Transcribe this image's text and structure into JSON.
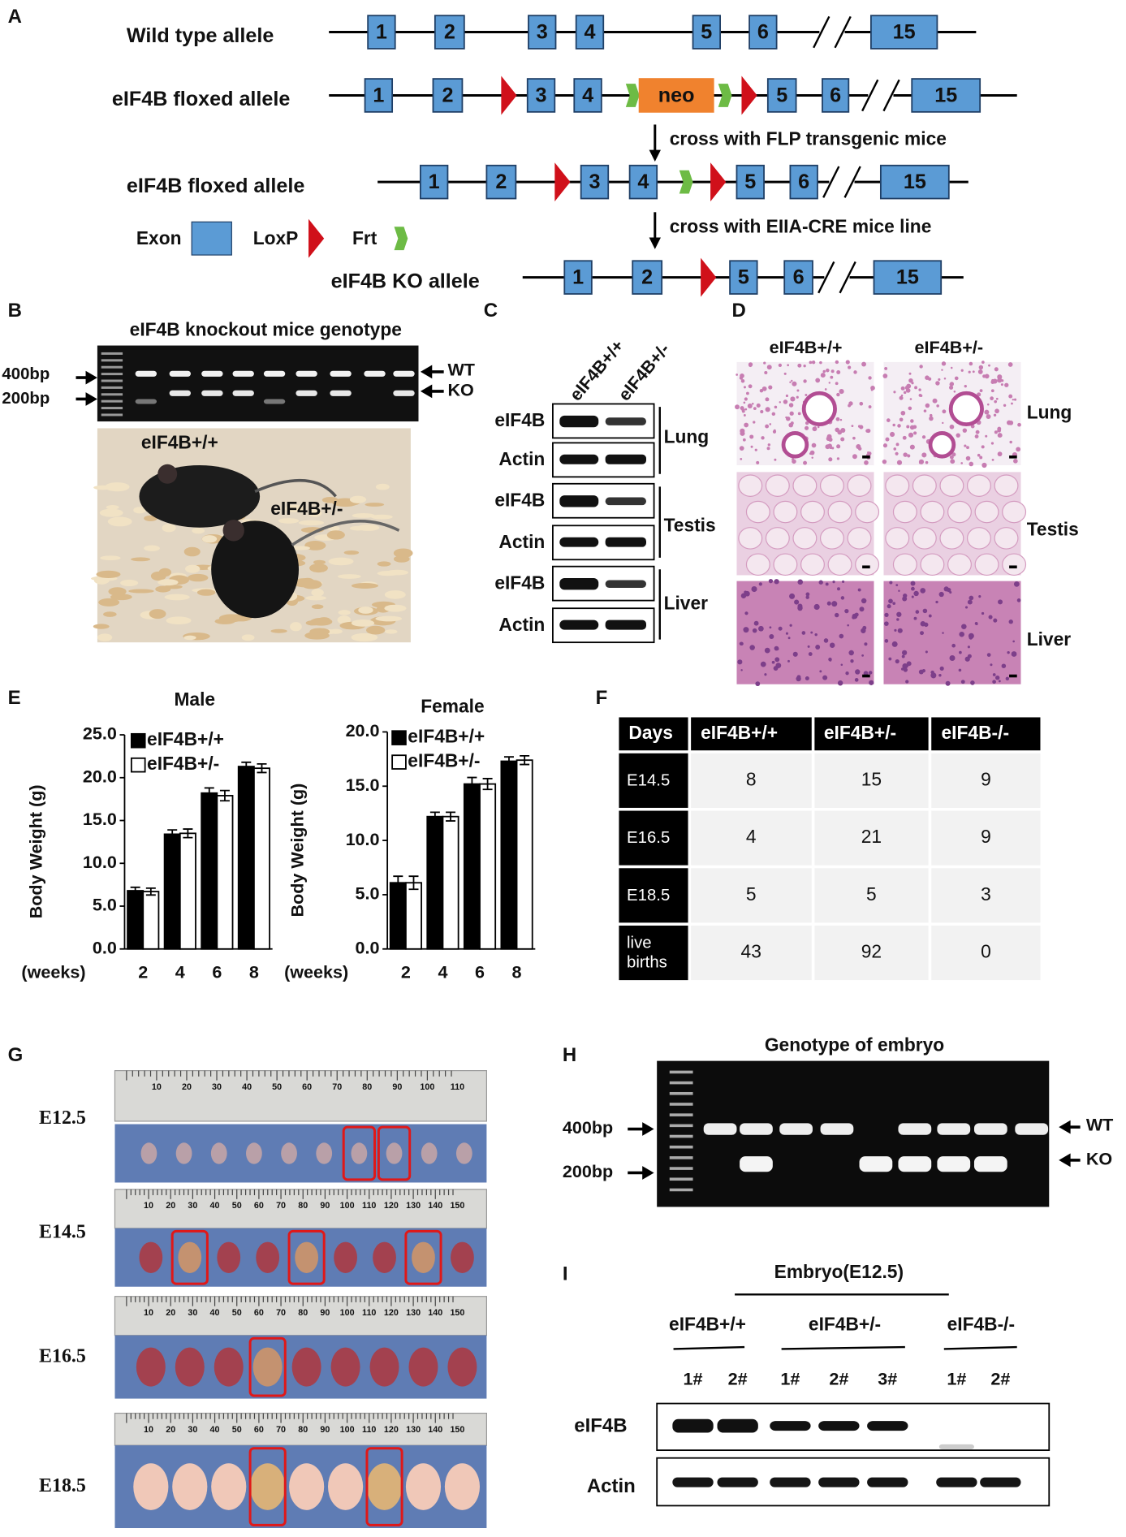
{
  "panel_labels": [
    "A",
    "B",
    "C",
    "D",
    "E",
    "F",
    "G",
    "H",
    "I"
  ],
  "panel_a": {
    "rows": [
      {
        "label": "Wild type allele",
        "exons": [
          "1",
          "2",
          "3",
          "4",
          "5",
          "6",
          "15"
        ]
      },
      {
        "label": "eIF4B floxed allele",
        "exons": [
          "1",
          "2",
          "3",
          "4",
          "neo",
          "5",
          "6",
          "15"
        ]
      },
      {
        "label": "eIF4B floxed allele",
        "exons": [
          "1",
          "2",
          "3",
          "4",
          "5",
          "6",
          "15"
        ]
      },
      {
        "label": "eIF4B KO allele",
        "exons": [
          "1",
          "2",
          "5",
          "6",
          "15"
        ]
      }
    ],
    "notes": [
      "cross with FLP transgenic mice",
      "cross with EIIA-CRE mice line"
    ],
    "legend": [
      "Exon",
      "LoxP",
      "Frt"
    ]
  },
  "panel_b": {
    "title": "eIF4B knockout mice genotype",
    "markers": [
      "400bp",
      "200bp"
    ],
    "bands": [
      "WT",
      "KO"
    ],
    "photo_labels": [
      "eIF4B+/+",
      "eIF4B+/-"
    ]
  },
  "panel_c": {
    "lanes": [
      "eIF4B+/+",
      "eIF4B+/-"
    ],
    "rows": [
      "eIF4B",
      "Actin",
      "eIF4B",
      "Actin",
      "eIF4B",
      "Actin"
    ],
    "tissues": [
      "Lung",
      "Testis",
      "Liver"
    ]
  },
  "panel_d": {
    "columns": [
      "eIF4B+/+",
      "eIF4B+/-"
    ],
    "tissues": [
      "Lung",
      "Testis",
      "Liver"
    ]
  },
  "chart_data": [
    {
      "type": "bar",
      "title": "Male",
      "ylabel": "Body Weight (g)",
      "xlabel": "(weeks)",
      "categories": [
        "2",
        "4",
        "6",
        "8"
      ],
      "series": [
        {
          "name": "eIF4B+/+",
          "color": "#000000",
          "values": [
            6.8,
            13.4,
            18.2,
            21.3
          ],
          "errors": [
            0.4,
            0.5,
            0.6,
            0.5
          ]
        },
        {
          "name": "eIF4B+/-",
          "color": "#ffffff",
          "values": [
            6.7,
            13.5,
            17.9,
            21.1
          ],
          "errors": [
            0.4,
            0.5,
            0.6,
            0.5
          ]
        }
      ],
      "ylim": [
        0,
        25
      ],
      "yticks": [
        {
          "value": 0,
          "label": "0.0"
        },
        {
          "value": 5,
          "label": "5.0"
        },
        {
          "value": 10,
          "label": "10.0"
        },
        {
          "value": 15,
          "label": "15.0"
        },
        {
          "value": 20,
          "label": "20.0"
        },
        {
          "value": 25,
          "label": "25.0"
        }
      ],
      "legend": "upper left"
    },
    {
      "type": "bar",
      "title": "Female",
      "ylabel": "Body Weight (g)",
      "xlabel": "(weeks)",
      "categories": [
        "2",
        "4",
        "6",
        "8"
      ],
      "series": [
        {
          "name": "eIF4B+/+",
          "color": "#000000",
          "values": [
            6.1,
            12.2,
            15.2,
            17.3
          ],
          "errors": [
            0.6,
            0.4,
            0.6,
            0.4
          ]
        },
        {
          "name": "eIF4B+/-",
          "color": "#ffffff",
          "values": [
            6.1,
            12.2,
            15.2,
            17.4
          ],
          "errors": [
            0.6,
            0.4,
            0.5,
            0.4
          ]
        }
      ],
      "ylim": [
        0,
        20
      ],
      "yticks": [
        {
          "value": 0,
          "label": "0.0"
        },
        {
          "value": 5,
          "label": "5.0"
        },
        {
          "value": 10,
          "label": "10.0"
        },
        {
          "value": 15,
          "label": "15.0"
        },
        {
          "value": 20,
          "label": "20.0"
        }
      ],
      "legend": "upper left"
    }
  ],
  "panel_f": {
    "header": [
      "Days",
      "eIF4B+/+",
      "eIF4B+/-",
      "eIF4B-/-"
    ],
    "rows": [
      [
        "E14.5",
        8,
        15,
        9
      ],
      [
        "E16.5",
        4,
        21,
        9
      ],
      [
        "E18.5",
        5,
        5,
        3
      ],
      [
        "live births",
        43,
        92,
        0
      ]
    ]
  },
  "panel_g": {
    "rows": [
      {
        "stage": "E12.5",
        "ruler": [
          "10",
          "20",
          "30",
          "40",
          "50",
          "60",
          "70",
          "80",
          "90",
          "100",
          "110"
        ]
      },
      {
        "stage": "E14.5",
        "ruler": [
          "10",
          "20",
          "30",
          "40",
          "50",
          "60",
          "70",
          "80",
          "90",
          "100",
          "110",
          "120",
          "130",
          "140",
          "150"
        ]
      },
      {
        "stage": "E16.5",
        "ruler": [
          "10",
          "20",
          "30",
          "40",
          "50",
          "60",
          "70",
          "80",
          "90",
          "100",
          "110",
          "120",
          "130",
          "140",
          "150"
        ]
      },
      {
        "stage": "E18.5",
        "ruler": [
          "10",
          "20",
          "30",
          "40",
          "50",
          "60",
          "70",
          "80",
          "90",
          "100",
          "110",
          "120",
          "130",
          "140",
          "150"
        ]
      }
    ]
  },
  "panel_h": {
    "title": "Genotype of embryo",
    "markers": [
      "400bp",
      "200bp"
    ],
    "bands": [
      "WT",
      "KO"
    ]
  },
  "panel_i": {
    "title": "Embryo(E12.5)",
    "groups": [
      "eIF4B+/+",
      "eIF4B+/-",
      "eIF4B-/-"
    ],
    "lanes": [
      "1#",
      "2#",
      "1#",
      "2#",
      "3#",
      "1#",
      "2#"
    ],
    "rows": [
      "eIF4B",
      "Actin"
    ]
  }
}
